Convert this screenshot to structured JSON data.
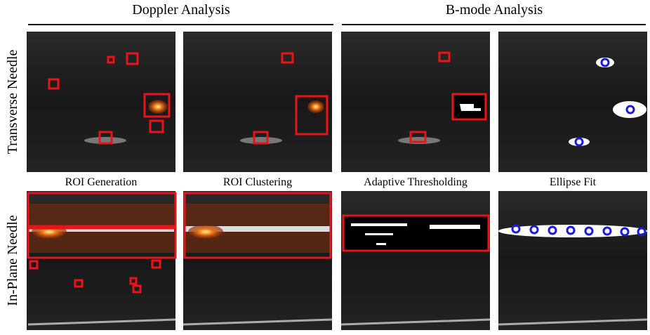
{
  "header": {
    "columns": [
      "Doppler Analysis",
      "B-mode Analysis"
    ]
  },
  "rows": [
    "Transverse Needle",
    "In-Plane Needle"
  ],
  "captions": [
    "ROI Generation",
    "ROI Clustering",
    "Adaptive Thresholding",
    "Ellipse Fit"
  ]
}
